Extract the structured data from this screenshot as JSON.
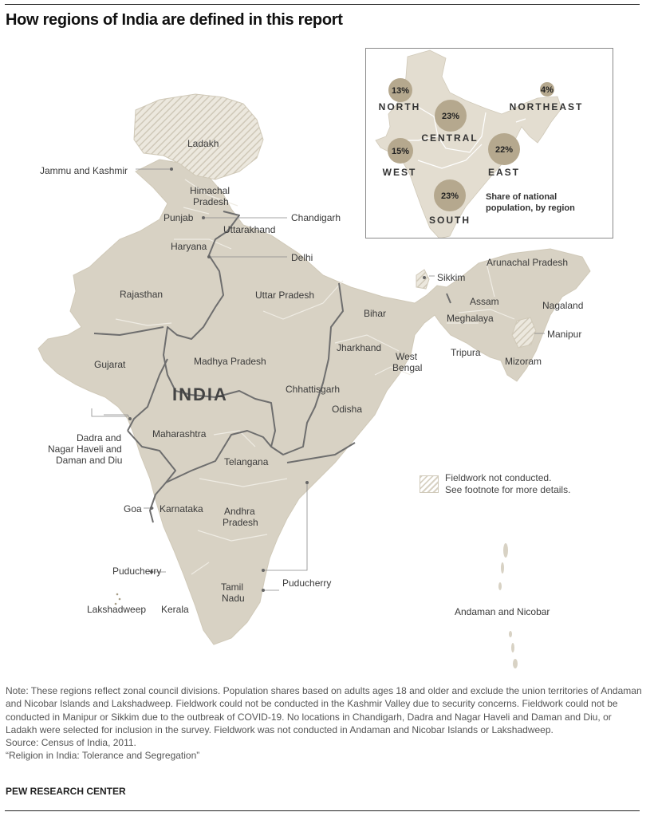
{
  "title": "How regions of India are defined in this report",
  "main_label": "INDIA",
  "states": [
    {
      "name": "Ladakh",
      "line1": "Ladakh"
    },
    {
      "name": "Jammu and Kashmir",
      "line1": "Jammu and Kashmir"
    },
    {
      "name": "Himachal Pradesh",
      "line1": "Himachal",
      "line2": "Pradesh"
    },
    {
      "name": "Punjab",
      "line1": "Punjab"
    },
    {
      "name": "Chandigarh",
      "line1": "Chandigarh"
    },
    {
      "name": "Uttarakhand",
      "line1": "Uttarakhand"
    },
    {
      "name": "Haryana",
      "line1": "Haryana"
    },
    {
      "name": "Delhi",
      "line1": "Delhi"
    },
    {
      "name": "Rajasthan",
      "line1": "Rajasthan"
    },
    {
      "name": "Uttar Pradesh",
      "line1": "Uttar Pradesh"
    },
    {
      "name": "Sikkim",
      "line1": "Sikkim"
    },
    {
      "name": "Arunachal Pradesh",
      "line1": "Arunachal Pradesh"
    },
    {
      "name": "Bihar",
      "line1": "Bihar"
    },
    {
      "name": "Assam",
      "line1": "Assam"
    },
    {
      "name": "Nagaland",
      "line1": "Nagaland"
    },
    {
      "name": "Meghalaya",
      "line1": "Meghalaya"
    },
    {
      "name": "Manipur",
      "line1": "Manipur"
    },
    {
      "name": "Gujarat",
      "line1": "Gujarat"
    },
    {
      "name": "Madhya Pradesh",
      "line1": "Madhya Pradesh"
    },
    {
      "name": "Jharkhand",
      "line1": "Jharkhand"
    },
    {
      "name": "West Bengal",
      "line1": "West",
      "line2": "Bengal"
    },
    {
      "name": "Tripura",
      "line1": "Tripura"
    },
    {
      "name": "Mizoram",
      "line1": "Mizoram"
    },
    {
      "name": "Chhattisgarh",
      "line1": "Chhattisgarh"
    },
    {
      "name": "Odisha",
      "line1": "Odisha"
    },
    {
      "name": "Dadra and Nagar Haveli and Daman and Diu",
      "line1": "Dadra and",
      "line2": "Nagar Haveli and",
      "line3": "Daman and Diu"
    },
    {
      "name": "Maharashtra",
      "line1": "Maharashtra"
    },
    {
      "name": "Telangana",
      "line1": "Telangana"
    },
    {
      "name": "Goa",
      "line1": "Goa"
    },
    {
      "name": "Karnataka",
      "line1": "Karnataka"
    },
    {
      "name": "Andhra Pradesh",
      "line1": "Andhra",
      "line2": "Pradesh"
    },
    {
      "name": "Puducherry (west)",
      "line1": "Puducherry"
    },
    {
      "name": "Puducherry (east)",
      "line1": "Puducherry"
    },
    {
      "name": "Tamil Nadu",
      "line1": "Tamil",
      "line2": "Nadu"
    },
    {
      "name": "Lakshadweep",
      "line1": "Lakshadweep"
    },
    {
      "name": "Kerala",
      "line1": "Kerala"
    },
    {
      "name": "Andaman and Nicobar",
      "line1": "Andaman and Nicobar"
    }
  ],
  "inset": {
    "regions": [
      {
        "name": "NORTH",
        "share": "13%",
        "share_value": 13
      },
      {
        "name": "CENTRAL",
        "share": "23%",
        "share_value": 23
      },
      {
        "name": "NORTHEAST",
        "share": "4%",
        "share_value": 4
      },
      {
        "name": "WEST",
        "share": "15%",
        "share_value": 15
      },
      {
        "name": "EAST",
        "share": "22%",
        "share_value": 22
      },
      {
        "name": "SOUTH",
        "share": "23%",
        "share_value": 23
      }
    ],
    "caption_line1": "Share of national",
    "caption_line2": "population, by region"
  },
  "legend": {
    "line1": "Fieldwork not conducted.",
    "line2": "See footnote for more details."
  },
  "notes": {
    "note": "Note: These regions reflect zonal council divisions. Population shares based on adults ages 18 and older and exclude the union territories of Andaman and Nicobar Islands and Lakshadweep. Fieldwork could not be conducted in the Kashmir Valley due to security concerns. Fieldwork could not be conducted in Manipur or Sikkim due to the outbreak of COVID-19. No locations in Chandigarh, Dadra and Nagar Haveli and Daman and Diu, or Ladakh were selected for inclusion in the survey. Fieldwork was not conducted in Andaman and Nicobar Islands or Lakshadweep.",
    "source": "Source: Census of India, 2011.",
    "report": "“Religion in India: Tolerance and Segregation”"
  },
  "brand": "PEW RESEARCH CENTER",
  "colors": {
    "land": "#d8d2c4",
    "state_border": "#efece4",
    "region_border": "#6e6e6e",
    "bubble": "#b5a88e",
    "hatch": "#cfc8b8"
  }
}
